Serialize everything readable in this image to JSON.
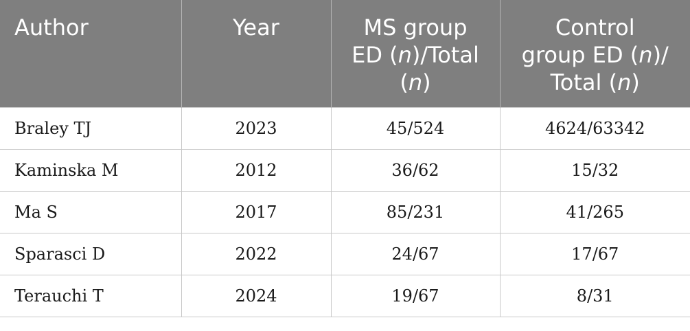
{
  "table": {
    "header": {
      "author": "Author",
      "year": "Year",
      "ms_group": {
        "line1": "MS group",
        "line2_pre": "ED (",
        "n": "n",
        "line2_post": ")/Total",
        "line3_pre": "(",
        "line3_post": ")"
      },
      "control_group": {
        "line1": "Control",
        "line2_pre": "group ED (",
        "n": "n",
        "line2_post": ")/",
        "line3_pre": "Total (",
        "line3_post": ")"
      }
    },
    "rows": [
      {
        "author": "Braley TJ",
        "year": "2023",
        "ms": "45/524",
        "control": "4624/63342"
      },
      {
        "author": "Kaminska M",
        "year": "2012",
        "ms": "36/62",
        "control": "15/32"
      },
      {
        "author": "Ma S",
        "year": "2017",
        "ms": "85/231",
        "control": "41/265"
      },
      {
        "author": "Sparasci D",
        "year": "2022",
        "ms": "24/67",
        "control": "17/67"
      },
      {
        "author": "Terauchi T",
        "year": "2024",
        "ms": "19/67",
        "control": "8/31"
      }
    ]
  }
}
